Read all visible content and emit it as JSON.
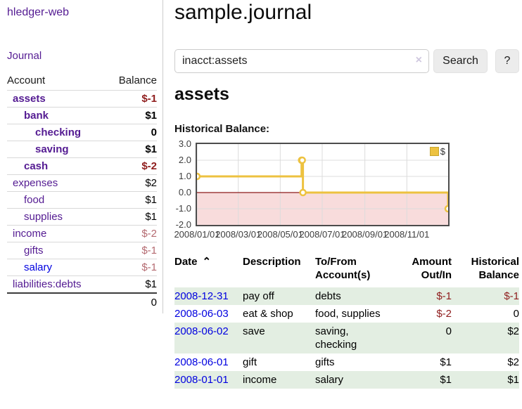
{
  "sidebar": {
    "brand": "hledger-web",
    "journal_link": "Journal",
    "accounts_header": {
      "account": "Account",
      "balance": "Balance"
    },
    "accounts": [
      {
        "name": "assets",
        "balance": "$-1",
        "indent": 1,
        "bold": true,
        "tone": "neg-strong"
      },
      {
        "name": "bank",
        "balance": "$1",
        "indent": 2,
        "bold": true,
        "tone": ""
      },
      {
        "name": "checking",
        "balance": "0",
        "indent": 3,
        "bold": true,
        "tone": ""
      },
      {
        "name": "saving",
        "balance": "$1",
        "indent": 3,
        "bold": true,
        "tone": ""
      },
      {
        "name": "cash",
        "balance": "$-2",
        "indent": 2,
        "bold": true,
        "tone": "neg-strong"
      },
      {
        "name": "expenses",
        "balance": "$2",
        "indent": 1,
        "bold": false,
        "tone": ""
      },
      {
        "name": "food",
        "balance": "$1",
        "indent": 2,
        "bold": false,
        "tone": ""
      },
      {
        "name": "supplies",
        "balance": "$1",
        "indent": 2,
        "bold": false,
        "tone": ""
      },
      {
        "name": "income",
        "balance": "$-2",
        "indent": 1,
        "bold": false,
        "tone": "neg-soft"
      },
      {
        "name": "gifts",
        "balance": "$-1",
        "indent": 2,
        "bold": false,
        "tone": "neg-soft"
      },
      {
        "name": "salary",
        "balance": "$-1",
        "indent": 2,
        "bold": false,
        "tone": "neg-soft",
        "unvisited": true
      },
      {
        "name": "liabilities:debts",
        "balance": "$1",
        "indent": 1,
        "bold": false,
        "tone": ""
      }
    ],
    "total": "0"
  },
  "header": {
    "title": "sample.journal"
  },
  "search": {
    "value": "inacct:assets",
    "clear_icon": "×",
    "button_label": "Search",
    "help_label": "?"
  },
  "account_page": {
    "title": "assets"
  },
  "chart_data": {
    "type": "line",
    "title": "Historical Balance:",
    "step": true,
    "series": [
      {
        "name": "$",
        "points": [
          [
            "2008-01-01",
            1
          ],
          [
            "2008-06-01",
            2
          ],
          [
            "2008-06-02",
            2
          ],
          [
            "2008-06-03",
            0
          ],
          [
            "2008-12-31",
            -1
          ]
        ]
      }
    ],
    "x_range": [
      "2008-01-01",
      "2008-12-31"
    ],
    "x_ticks": [
      "2008/01/01",
      "2008/03/01",
      "2008/05/01",
      "2008/07/01",
      "2008/09/01",
      "2008/11/01"
    ],
    "y_ticks": [
      "3.0",
      "2.0",
      "1.0",
      "0.0",
      "-1.0",
      "-2.0"
    ],
    "ylim": [
      -2,
      3
    ],
    "legend": "$",
    "legend_position": "top-right",
    "grid": true
  },
  "register": {
    "columns": [
      {
        "lines": [
          "Date"
        ],
        "sort_icon": "⌃"
      },
      {
        "lines": [
          "Description"
        ]
      },
      {
        "lines": [
          "To/From",
          "Account(s)"
        ]
      },
      {
        "lines": [
          "Amount",
          "Out/In"
        ]
      },
      {
        "lines": [
          "Historical",
          "Balance"
        ]
      }
    ],
    "rows": [
      {
        "date": "2008-12-31",
        "description": "pay off",
        "accounts": "debts",
        "amount": "$-1",
        "amount_tone": "neg",
        "balance": "$-1",
        "balance_tone": "neg"
      },
      {
        "date": "2008-06-03",
        "description": "eat & shop",
        "accounts": "food, supplies",
        "amount": "$-2",
        "amount_tone": "neg",
        "balance": "0",
        "balance_tone": ""
      },
      {
        "date": "2008-06-02",
        "description": "save",
        "accounts": "saving, checking",
        "amount": "0",
        "amount_tone": "",
        "balance": "$2",
        "balance_tone": ""
      },
      {
        "date": "2008-06-01",
        "description": "gift",
        "accounts": "gifts",
        "amount": "$1",
        "amount_tone": "",
        "balance": "$2",
        "balance_tone": ""
      },
      {
        "date": "2008-01-01",
        "description": "income",
        "accounts": "salary",
        "amount": "$1",
        "amount_tone": "",
        "balance": "$1",
        "balance_tone": ""
      }
    ]
  },
  "colors": {
    "purple": "#541b92",
    "blue": "#0000e0",
    "negative_strong": "#8f1d1d",
    "negative_soft": "#b46a70",
    "row_green": "#e3eee2",
    "chart_line": "#edc240",
    "chart_negative_fill": "#f8dcdc",
    "chart_zero_line": "#8d1a1a"
  }
}
